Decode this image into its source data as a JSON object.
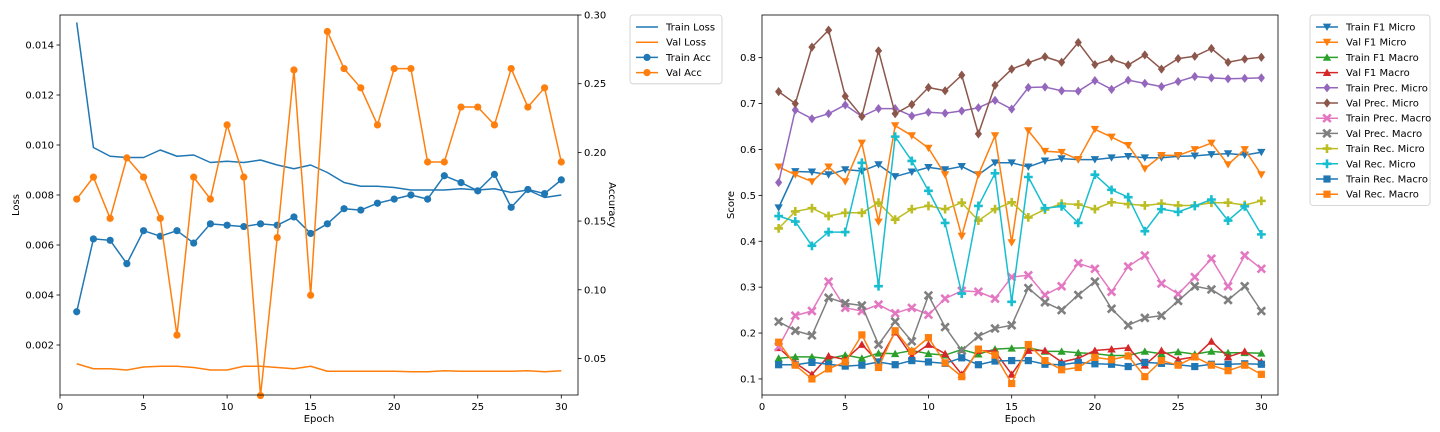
{
  "chart_data": [
    {
      "type": "line",
      "xlabel": "Epoch",
      "ylabel": "Loss",
      "y2label": "Accuracy",
      "xlim": [
        0,
        31
      ],
      "ylim": [
        0,
        0.0152
      ],
      "y2lim": [
        0.0234,
        0.3
      ],
      "xticks": [
        0,
        5,
        10,
        15,
        20,
        25,
        30
      ],
      "yticks": [
        0.002,
        0.004,
        0.006,
        0.008,
        0.01,
        0.012,
        0.014
      ],
      "ytick_labels": [
        "0.002",
        "0.004",
        "0.006",
        "0.008",
        "0.010",
        "0.012",
        "0.014"
      ],
      "y2ticks": [
        0.05,
        0.1,
        0.15,
        0.2,
        0.25,
        0.3
      ],
      "y2tick_labels": [
        "0.05",
        "0.10",
        "0.15",
        "0.20",
        "0.25",
        "0.30"
      ],
      "grid": false,
      "legend_position": "outside-right",
      "x": [
        1,
        2,
        3,
        4,
        5,
        6,
        7,
        8,
        9,
        10,
        11,
        12,
        13,
        14,
        15,
        16,
        17,
        18,
        19,
        20,
        21,
        22,
        23,
        24,
        25,
        26,
        27,
        28,
        29,
        30
      ],
      "series": [
        {
          "name": "Train Loss",
          "axis": "left",
          "color": "#1f77b4",
          "marker": "none",
          "values": [
            0.0149,
            0.0099,
            0.00955,
            0.0095,
            0.0095,
            0.0098,
            0.00955,
            0.0096,
            0.0093,
            0.00935,
            0.0093,
            0.0094,
            0.0092,
            0.00905,
            0.0092,
            0.0089,
            0.0085,
            0.00835,
            0.00835,
            0.0083,
            0.0082,
            0.0082,
            0.0082,
            0.00825,
            0.0082,
            0.00825,
            0.0081,
            0.0082,
            0.0079,
            0.008
          ]
        },
        {
          "name": "Val Loss",
          "axis": "left",
          "color": "#ff7f0e",
          "marker": "none",
          "values": [
            0.00125,
            0.00105,
            0.00105,
            0.001,
            0.00112,
            0.00115,
            0.00115,
            0.0011,
            0.001,
            0.001,
            0.00115,
            0.00115,
            0.0011,
            0.00105,
            0.00115,
            0.00095,
            0.00095,
            0.00095,
            0.00095,
            0.00095,
            0.00093,
            0.00093,
            0.00097,
            0.00095,
            0.00095,
            0.00095,
            0.00095,
            0.00097,
            0.00093,
            0.00097
          ]
        },
        {
          "name": "Train Acc",
          "axis": "right",
          "color": "#1f77b4",
          "marker": "circle",
          "values": [
            0.084,
            0.137,
            0.136,
            0.119,
            0.143,
            0.139,
            0.143,
            0.134,
            0.148,
            0.147,
            0.146,
            0.148,
            0.147,
            0.153,
            0.141,
            0.148,
            0.159,
            0.158,
            0.163,
            0.166,
            0.169,
            0.166,
            0.183,
            0.178,
            0.172,
            0.184,
            0.16,
            0.173,
            0.17,
            0.18
          ]
        },
        {
          "name": "Val Acc",
          "axis": "right",
          "color": "#ff7f0e",
          "marker": "circle",
          "values": [
            0.166,
            0.182,
            0.152,
            0.196,
            0.182,
            0.152,
            0.067,
            0.182,
            0.166,
            0.22,
            0.182,
            0.023,
            0.138,
            0.26,
            0.096,
            0.288,
            0.261,
            0.247,
            0.22,
            0.261,
            0.261,
            0.193,
            0.193,
            0.233,
            0.233,
            0.22,
            0.261,
            0.233,
            0.247,
            0.193
          ]
        }
      ]
    },
    {
      "type": "line",
      "xlabel": "Epoch",
      "ylabel": "Score",
      "xlim": [
        0,
        31
      ],
      "ylim": [
        0.065,
        0.893
      ],
      "xticks": [
        0,
        5,
        10,
        15,
        20,
        25,
        30
      ],
      "yticks": [
        0.1,
        0.2,
        0.3,
        0.4,
        0.5,
        0.6,
        0.7,
        0.8
      ],
      "ytick_labels": [
        "0.1",
        "0.2",
        "0.3",
        "0.4",
        "0.5",
        "0.6",
        "0.7",
        "0.8"
      ],
      "grid": false,
      "legend_position": "outside-right",
      "x": [
        1,
        2,
        3,
        4,
        5,
        6,
        7,
        8,
        9,
        10,
        11,
        12,
        13,
        14,
        15,
        16,
        17,
        18,
        19,
        20,
        21,
        22,
        23,
        24,
        25,
        26,
        27,
        28,
        29,
        30
      ],
      "series": [
        {
          "name": "Train F1 Micro",
          "color": "#1f77b4",
          "marker": "tri-down",
          "values": [
            0.473,
            0.552,
            0.551,
            0.545,
            0.556,
            0.553,
            0.567,
            0.541,
            0.551,
            0.561,
            0.556,
            0.563,
            0.545,
            0.571,
            0.571,
            0.562,
            0.575,
            0.58,
            0.578,
            0.578,
            0.582,
            0.585,
            0.582,
            0.582,
            0.585,
            0.586,
            0.589,
            0.591,
            0.588,
            0.594
          ]
        },
        {
          "name": "Val F1 Micro",
          "color": "#ff7f0e",
          "marker": "tri-down",
          "values": [
            0.562,
            0.545,
            0.53,
            0.562,
            0.53,
            0.614,
            0.442,
            0.652,
            0.63,
            0.603,
            0.545,
            0.411,
            0.545,
            0.63,
            0.397,
            0.641,
            0.596,
            0.594,
            0.578,
            0.644,
            0.627,
            0.609,
            0.558,
            0.587,
            0.587,
            0.6,
            0.614,
            0.567,
            0.6,
            0.545
          ]
        },
        {
          "name": "Train F1 Macro",
          "color": "#2ca02c",
          "marker": "tri-up",
          "values": [
            0.145,
            0.148,
            0.148,
            0.144,
            0.152,
            0.145,
            0.156,
            0.155,
            0.162,
            0.155,
            0.152,
            0.164,
            0.154,
            0.165,
            0.167,
            0.168,
            0.16,
            0.16,
            0.157,
            0.155,
            0.151,
            0.151,
            0.16,
            0.155,
            0.159,
            0.154,
            0.16,
            0.157,
            0.157,
            0.156
          ]
        },
        {
          "name": "Val F1 Macro",
          "color": "#d62728",
          "marker": "tri-up",
          "values": [
            0.168,
            0.135,
            0.11,
            0.15,
            0.142,
            0.175,
            0.137,
            0.202,
            0.15,
            0.175,
            0.155,
            0.11,
            0.162,
            0.16,
            0.11,
            0.162,
            0.162,
            0.137,
            0.145,
            0.162,
            0.165,
            0.168,
            0.13,
            0.162,
            0.142,
            0.148,
            0.182,
            0.148,
            0.16,
            0.137
          ]
        },
        {
          "name": "Train Prec. Micro",
          "color": "#9467bd",
          "marker": "diamond",
          "values": [
            0.528,
            0.686,
            0.667,
            0.678,
            0.697,
            0.672,
            0.689,
            0.689,
            0.673,
            0.681,
            0.679,
            0.684,
            0.691,
            0.707,
            0.688,
            0.735,
            0.736,
            0.728,
            0.727,
            0.75,
            0.731,
            0.751,
            0.744,
            0.737,
            0.748,
            0.759,
            0.756,
            0.754,
            0.755,
            0.756
          ]
        },
        {
          "name": "Val Prec. Micro",
          "color": "#8c564b",
          "marker": "diamond",
          "values": [
            0.726,
            0.7,
            0.823,
            0.86,
            0.716,
            0.672,
            0.815,
            0.678,
            0.698,
            0.735,
            0.728,
            0.762,
            0.634,
            0.74,
            0.775,
            0.789,
            0.802,
            0.79,
            0.833,
            0.785,
            0.797,
            0.784,
            0.806,
            0.775,
            0.798,
            0.803,
            0.82,
            0.79,
            0.797,
            0.801
          ]
        },
        {
          "name": "Train Prec. Macro",
          "color": "#e377c2",
          "marker": "x",
          "values": [
            0.17,
            0.238,
            0.248,
            0.312,
            0.255,
            0.248,
            0.262,
            0.243,
            0.255,
            0.24,
            0.275,
            0.292,
            0.29,
            0.275,
            0.322,
            0.326,
            0.283,
            0.302,
            0.352,
            0.34,
            0.29,
            0.345,
            0.369,
            0.308,
            0.285,
            0.322,
            0.362,
            0.302,
            0.369,
            0.34
          ]
        },
        {
          "name": "Val Prec. Macro",
          "color": "#7f7f7f",
          "marker": "x",
          "values": [
            0.225,
            0.205,
            0.195,
            0.277,
            0.265,
            0.26,
            0.175,
            0.225,
            0.182,
            0.282,
            0.213,
            0.162,
            0.193,
            0.21,
            0.217,
            0.298,
            0.267,
            0.25,
            0.283,
            0.312,
            0.253,
            0.217,
            0.233,
            0.238,
            0.27,
            0.302,
            0.295,
            0.272,
            0.302,
            0.248
          ]
        },
        {
          "name": "Train Rec. Micro",
          "color": "#bcbd22",
          "marker": "plus",
          "values": [
            0.428,
            0.465,
            0.472,
            0.455,
            0.462,
            0.462,
            0.484,
            0.447,
            0.47,
            0.477,
            0.47,
            0.484,
            0.445,
            0.47,
            0.485,
            0.452,
            0.469,
            0.482,
            0.48,
            0.47,
            0.485,
            0.481,
            0.478,
            0.482,
            0.478,
            0.478,
            0.484,
            0.484,
            0.479,
            0.488
          ]
        },
        {
          "name": "Val Rec. Micro",
          "color": "#17becf",
          "marker": "plus",
          "values": [
            0.455,
            0.443,
            0.39,
            0.42,
            0.42,
            0.571,
            0.302,
            0.628,
            0.575,
            0.51,
            0.44,
            0.286,
            0.477,
            0.548,
            0.268,
            0.54,
            0.472,
            0.476,
            0.44,
            0.545,
            0.512,
            0.496,
            0.422,
            0.47,
            0.464,
            0.477,
            0.491,
            0.445,
            0.476,
            0.415
          ]
        },
        {
          "name": "Train Rec. Macro",
          "color": "#1f77b4",
          "marker": "square",
          "values": [
            0.131,
            0.131,
            0.136,
            0.132,
            0.128,
            0.13,
            0.137,
            0.131,
            0.14,
            0.137,
            0.134,
            0.146,
            0.131,
            0.139,
            0.14,
            0.14,
            0.132,
            0.131,
            0.136,
            0.133,
            0.132,
            0.127,
            0.136,
            0.134,
            0.131,
            0.127,
            0.132,
            0.132,
            0.133,
            0.132
          ]
        },
        {
          "name": "Val Rec. Macro",
          "color": "#ff7f0e",
          "marker": "square",
          "values": [
            0.18,
            0.13,
            0.1,
            0.122,
            0.137,
            0.196,
            0.125,
            0.205,
            0.16,
            0.19,
            0.135,
            0.105,
            0.165,
            0.152,
            0.09,
            0.175,
            0.14,
            0.12,
            0.125,
            0.147,
            0.142,
            0.15,
            0.105,
            0.14,
            0.13,
            0.148,
            0.13,
            0.118,
            0.13,
            0.11
          ]
        }
      ]
    }
  ]
}
